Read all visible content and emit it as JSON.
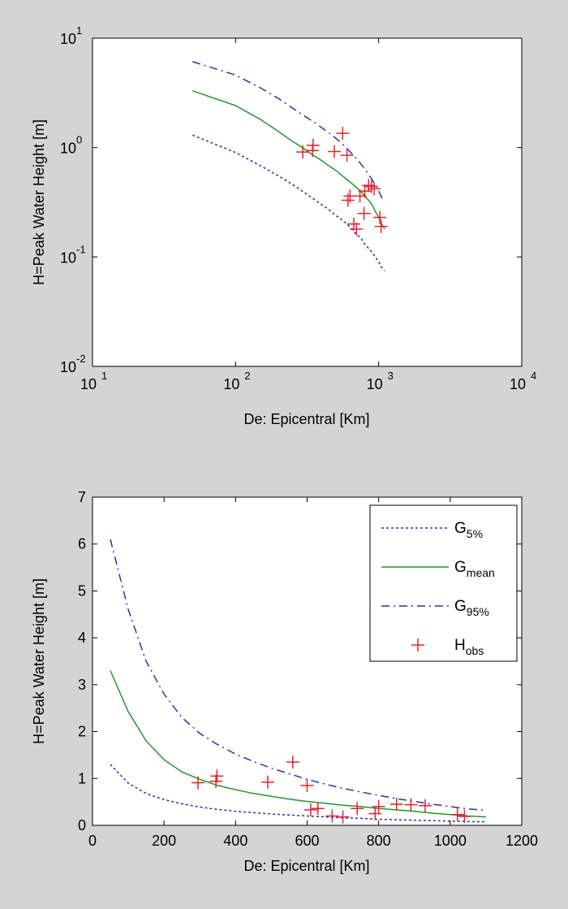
{
  "chart_data": [
    {
      "type": "line",
      "xlabel": "De: Epicentral [Km]",
      "ylabel": "H=Peak Water Height [m]",
      "xscale": "log",
      "yscale": "log",
      "xlim": [
        10,
        10000
      ],
      "ylim": [
        0.01,
        10
      ],
      "x_ticks": [
        {
          "value": 10,
          "base": "10",
          "exp": "1"
        },
        {
          "value": 100,
          "base": "10",
          "exp": "2"
        },
        {
          "value": 1000,
          "base": "10",
          "exp": "3"
        },
        {
          "value": 10000,
          "base": "10",
          "exp": "4"
        }
      ],
      "y_ticks": [
        {
          "value": 0.01,
          "base": "10",
          "exp": "-2"
        },
        {
          "value": 0.1,
          "base": "10",
          "exp": "-1"
        },
        {
          "value": 1,
          "base": "10",
          "exp": "0"
        },
        {
          "value": 10,
          "base": "10",
          "exp": "1"
        }
      ],
      "grid": false,
      "legend": "none"
    },
    {
      "type": "line",
      "xlabel": "De: Epicentral [Km]",
      "ylabel": "H=Peak Water Height [m]",
      "xlim": [
        0,
        1200
      ],
      "ylim": [
        0,
        7
      ],
      "x_ticks": [
        0,
        200,
        400,
        600,
        800,
        1000,
        1200
      ],
      "y_ticks": [
        0,
        1,
        2,
        3,
        4,
        5,
        6,
        7
      ],
      "grid": false,
      "legend": "top-right",
      "legend_entries": [
        {
          "base": "G",
          "sub": "5%",
          "color": "#2b2fb8",
          "style": "dotted"
        },
        {
          "base": "G",
          "sub": "mean",
          "color": "#1f9a2a",
          "style": "solid"
        },
        {
          "base": "G",
          "sub": "95%",
          "color": "#2b2fb8",
          "style": "dashdot"
        },
        {
          "base": "H",
          "sub": "obs",
          "color": "#e8222a",
          "style": "marker-plus"
        }
      ]
    }
  ],
  "series": {
    "x": [
      50,
      100,
      150,
      200,
      250,
      300,
      350,
      400,
      450,
      500,
      550,
      600,
      650,
      700,
      750,
      800,
      850,
      900,
      950,
      1000,
      1050,
      1100
    ],
    "g5": [
      1.3,
      0.9,
      0.68,
      0.55,
      0.46,
      0.39,
      0.34,
      0.3,
      0.27,
      0.24,
      0.22,
      0.2,
      0.18,
      0.16,
      0.15,
      0.13,
      0.12,
      0.11,
      0.1,
      0.09,
      0.08,
      0.075
    ],
    "gmean": [
      3.3,
      2.42,
      1.8,
      1.4,
      1.14,
      0.98,
      0.85,
      0.76,
      0.68,
      0.62,
      0.56,
      0.51,
      0.47,
      0.43,
      0.4,
      0.36,
      0.33,
      0.3,
      0.26,
      0.23,
      0.2,
      0.18
    ],
    "g95": [
      6.1,
      4.6,
      3.5,
      2.8,
      2.3,
      1.96,
      1.72,
      1.52,
      1.36,
      1.22,
      1.1,
      0.98,
      0.88,
      0.79,
      0.71,
      0.64,
      0.57,
      0.51,
      0.45,
      0.4,
      0.35,
      0.32
    ],
    "h_obs": [
      {
        "x": 295,
        "y": 0.91
      },
      {
        "x": 345,
        "y": 0.94
      },
      {
        "x": 348,
        "y": 1.05
      },
      {
        "x": 490,
        "y": 0.92
      },
      {
        "x": 560,
        "y": 1.35
      },
      {
        "x": 600,
        "y": 0.85
      },
      {
        "x": 610,
        "y": 0.33
      },
      {
        "x": 630,
        "y": 0.36
      },
      {
        "x": 670,
        "y": 0.2
      },
      {
        "x": 700,
        "y": 0.18
      },
      {
        "x": 740,
        "y": 0.36
      },
      {
        "x": 790,
        "y": 0.25
      },
      {
        "x": 800,
        "y": 0.4
      },
      {
        "x": 850,
        "y": 0.45
      },
      {
        "x": 890,
        "y": 0.44
      },
      {
        "x": 930,
        "y": 0.42
      },
      {
        "x": 1020,
        "y": 0.23
      },
      {
        "x": 1040,
        "y": 0.19
      }
    ]
  },
  "colors": {
    "background": "#d4d4d4",
    "axes": "#ffffff",
    "g_bounds": "#2b2fb8",
    "g_mean": "#1f9a2a",
    "h_obs": "#e8222a"
  }
}
